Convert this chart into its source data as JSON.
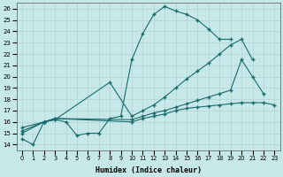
{
  "xlabel": "Humidex (Indice chaleur)",
  "xlim": [
    -0.5,
    23.5
  ],
  "ylim": [
    13.5,
    26.5
  ],
  "xticks": [
    0,
    1,
    2,
    3,
    4,
    5,
    6,
    7,
    8,
    9,
    10,
    11,
    12,
    13,
    14,
    15,
    16,
    17,
    18,
    19,
    20,
    21,
    22,
    23
  ],
  "yticks": [
    14,
    15,
    16,
    17,
    18,
    19,
    20,
    21,
    22,
    23,
    24,
    25,
    26
  ],
  "bg_color": "#c6e8e8",
  "line_color": "#1a6b6b",
  "grid_color": "#b0d4d4",
  "line1_x": [
    0,
    1,
    2,
    3,
    4,
    5,
    6,
    7,
    8,
    9,
    10,
    11,
    12,
    13,
    14,
    15,
    16,
    17,
    18,
    19
  ],
  "line1_y": [
    14.5,
    14.0,
    16.0,
    16.2,
    16.0,
    14.8,
    15.0,
    15.0,
    16.3,
    16.5,
    21.5,
    23.8,
    25.5,
    26.2,
    25.8,
    25.5,
    25.0,
    24.2,
    23.3,
    23.3
  ],
  "line2_x": [
    0,
    2,
    3,
    8,
    10,
    11,
    12,
    13,
    14,
    15,
    16,
    17,
    18,
    19,
    20,
    21
  ],
  "line2_y": [
    15.0,
    16.0,
    16.2,
    19.5,
    16.5,
    17.0,
    17.5,
    18.2,
    19.0,
    19.8,
    20.5,
    21.2,
    22.0,
    22.8,
    23.3,
    21.5
  ],
  "line3_x": [
    0,
    2,
    3,
    10,
    11,
    12,
    13,
    14,
    15,
    16,
    17,
    18,
    19,
    20,
    21,
    22
  ],
  "line3_y": [
    15.2,
    16.0,
    16.3,
    16.2,
    16.5,
    16.8,
    17.0,
    17.3,
    17.6,
    17.9,
    18.2,
    18.5,
    18.8,
    21.5,
    20.0,
    18.5
  ],
  "line4_x": [
    0,
    2,
    3,
    10,
    11,
    12,
    13,
    14,
    15,
    16,
    17,
    18,
    19,
    20,
    21,
    22,
    23
  ],
  "line4_y": [
    15.5,
    16.0,
    16.3,
    16.0,
    16.3,
    16.5,
    16.7,
    17.0,
    17.2,
    17.3,
    17.4,
    17.5,
    17.6,
    17.7,
    17.7,
    17.7,
    17.5
  ]
}
